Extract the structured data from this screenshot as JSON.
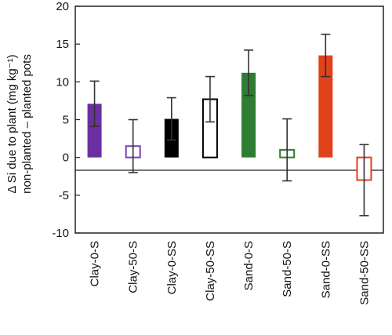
{
  "chart_data": {
    "type": "bar",
    "categories": [
      "Clay-0-S",
      "Clay-50-S",
      "Clay-0-SS",
      "Clay-50-SS",
      "Sand-0-S",
      "Sand-50-S",
      "Sand-0-SS",
      "Sand-50-SS"
    ],
    "values": [
      7.1,
      1.5,
      5.1,
      7.7,
      11.2,
      1.0,
      13.5,
      -3.0
    ],
    "errors": [
      3.0,
      3.5,
      2.8,
      3.0,
      3.0,
      4.1,
      2.8,
      4.7
    ],
    "filled": [
      true,
      false,
      true,
      false,
      true,
      false,
      true,
      false
    ],
    "colors": [
      "#6a2fa0",
      "#7b3fb0",
      "#000000",
      "#000000",
      "#2e7d32",
      "#2e7d32",
      "#e0421b",
      "#e0421b"
    ],
    "ylabel_line1": "Δ Si due to plant (mg kg⁻¹)",
    "ylabel_line2": "non-planted – planted pots",
    "ylim": [
      -10,
      20
    ],
    "yticks": [
      -10,
      -5,
      0,
      5,
      10,
      15,
      20
    ],
    "grid": false,
    "legend": "none"
  }
}
